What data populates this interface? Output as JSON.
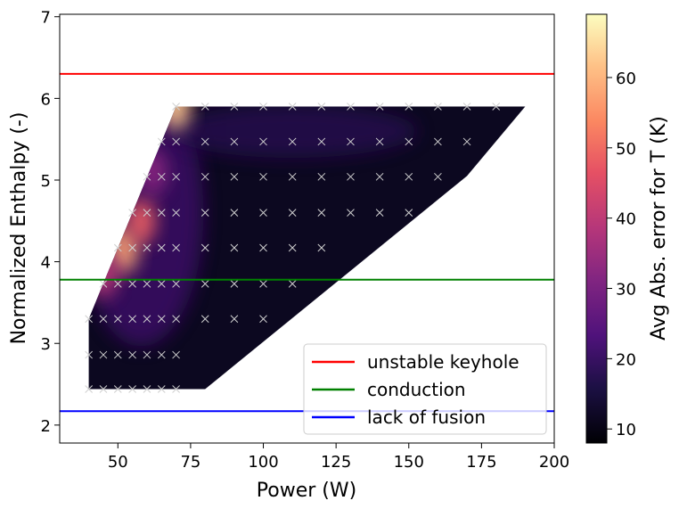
{
  "chart_data": {
    "type": "heatmap",
    "xlabel": "Power (W)",
    "ylabel": "Normalized Enthalpy (-)",
    "xlim": [
      30,
      200
    ],
    "ylim": [
      1.78,
      7.03
    ],
    "x_ticks": [
      "50",
      "75",
      "100",
      "125",
      "150",
      "175",
      "200"
    ],
    "y_ticks": [
      "2",
      "3",
      "4",
      "5",
      "6",
      "7"
    ],
    "colorbar": {
      "label": "Avg Abs. error for T (K)",
      "range": [
        8,
        69
      ],
      "ticks": [
        "10",
        "20",
        "30",
        "40",
        "50",
        "60"
      ],
      "colormap": "magma"
    },
    "region_polygon": [
      [
        40,
        2.44
      ],
      [
        80,
        2.44
      ],
      [
        170,
        5.05
      ],
      [
        190,
        5.9
      ],
      [
        70,
        5.9
      ],
      [
        40,
        3.3
      ]
    ],
    "sample_points": [
      [
        40,
        2.44
      ],
      [
        40,
        2.86
      ],
      [
        40,
        3.3
      ],
      [
        45,
        2.44
      ],
      [
        45,
        2.86
      ],
      [
        45,
        3.3
      ],
      [
        45,
        3.73
      ],
      [
        50,
        2.44
      ],
      [
        50,
        2.86
      ],
      [
        50,
        3.3
      ],
      [
        50,
        3.73
      ],
      [
        50,
        4.17
      ],
      [
        55,
        2.44
      ],
      [
        55,
        2.86
      ],
      [
        55,
        3.3
      ],
      [
        55,
        3.73
      ],
      [
        55,
        4.17
      ],
      [
        55,
        4.6
      ],
      [
        60,
        2.44
      ],
      [
        60,
        2.86
      ],
      [
        60,
        3.3
      ],
      [
        60,
        3.73
      ],
      [
        60,
        4.17
      ],
      [
        60,
        4.6
      ],
      [
        60,
        5.04
      ],
      [
        65,
        2.44
      ],
      [
        65,
        2.86
      ],
      [
        65,
        3.3
      ],
      [
        65,
        3.73
      ],
      [
        65,
        4.17
      ],
      [
        65,
        4.6
      ],
      [
        65,
        5.04
      ],
      [
        65,
        5.47
      ],
      [
        70,
        2.44
      ],
      [
        70,
        2.86
      ],
      [
        70,
        3.3
      ],
      [
        70,
        3.73
      ],
      [
        70,
        4.17
      ],
      [
        70,
        4.6
      ],
      [
        70,
        5.04
      ],
      [
        70,
        5.47
      ],
      [
        70,
        5.9
      ],
      [
        80,
        3.3
      ],
      [
        80,
        3.73
      ],
      [
        80,
        4.17
      ],
      [
        80,
        4.6
      ],
      [
        80,
        5.04
      ],
      [
        80,
        5.47
      ],
      [
        80,
        5.9
      ],
      [
        90,
        3.3
      ],
      [
        90,
        3.73
      ],
      [
        90,
        4.17
      ],
      [
        90,
        4.6
      ],
      [
        90,
        5.04
      ],
      [
        90,
        5.47
      ],
      [
        90,
        5.9
      ],
      [
        100,
        3.3
      ],
      [
        100,
        3.73
      ],
      [
        100,
        4.17
      ],
      [
        100,
        4.6
      ],
      [
        100,
        5.04
      ],
      [
        100,
        5.47
      ],
      [
        100,
        5.9
      ],
      [
        110,
        3.73
      ],
      [
        110,
        4.17
      ],
      [
        110,
        4.6
      ],
      [
        110,
        5.04
      ],
      [
        110,
        5.47
      ],
      [
        110,
        5.9
      ],
      [
        120,
        4.17
      ],
      [
        120,
        4.6
      ],
      [
        120,
        5.04
      ],
      [
        120,
        5.47
      ],
      [
        120,
        5.9
      ],
      [
        130,
        4.6
      ],
      [
        130,
        5.04
      ],
      [
        130,
        5.47
      ],
      [
        130,
        5.9
      ],
      [
        140,
        4.6
      ],
      [
        140,
        5.04
      ],
      [
        140,
        5.47
      ],
      [
        140,
        5.9
      ],
      [
        150,
        4.6
      ],
      [
        150,
        5.04
      ],
      [
        150,
        5.47
      ],
      [
        150,
        5.9
      ],
      [
        160,
        5.04
      ],
      [
        160,
        5.47
      ],
      [
        160,
        5.9
      ],
      [
        170,
        5.47
      ],
      [
        170,
        5.9
      ],
      [
        180,
        5.9
      ]
    ],
    "hotspots": [
      {
        "x": 70,
        "y": 5.9,
        "value": 62
      },
      {
        "x": 52,
        "y": 4.15,
        "value": 58
      },
      {
        "x": 58,
        "y": 4.5,
        "value": 48
      },
      {
        "x": 45,
        "y": 3.85,
        "value": 40
      },
      {
        "x": 62,
        "y": 5.1,
        "value": 32
      }
    ],
    "reference_lines": [
      {
        "name": "unstable keyhole",
        "y": 6.3,
        "color": "#ff0000"
      },
      {
        "name": "conduction",
        "y": 3.78,
        "color": "#008000"
      },
      {
        "name": "lack of fusion",
        "y": 2.17,
        "color": "#0000ff"
      }
    ],
    "legend_position": "lower-right",
    "grid": false
  }
}
